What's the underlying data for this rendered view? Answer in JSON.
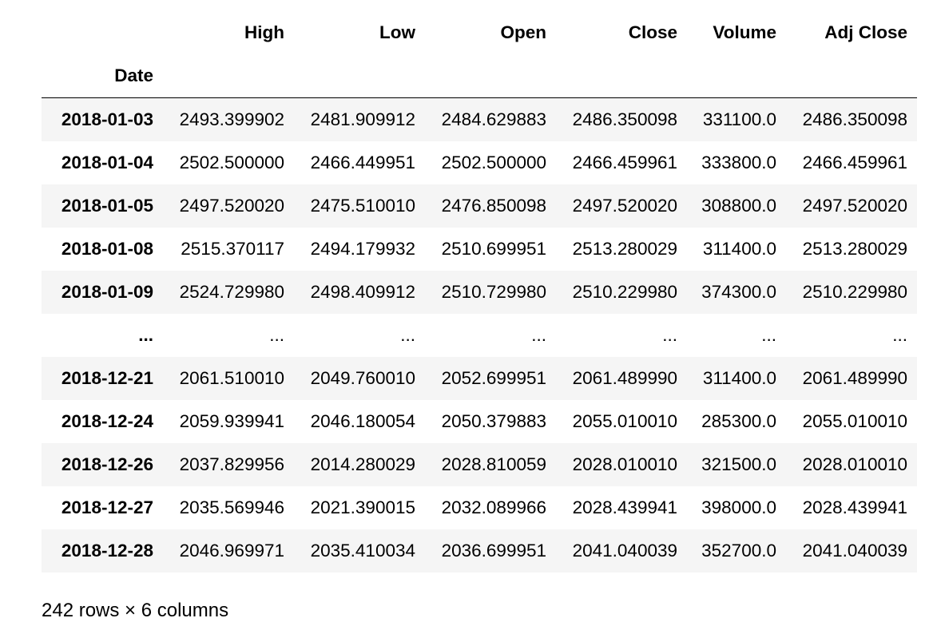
{
  "dataframe": {
    "columns": [
      "High",
      "Low",
      "Open",
      "Close",
      "Volume",
      "Adj Close"
    ],
    "index_name": "Date",
    "rows": [
      {
        "date": "2018-01-03",
        "values": [
          "2493.399902",
          "2481.909912",
          "2484.629883",
          "2486.350098",
          "331100.0",
          "2486.350098"
        ]
      },
      {
        "date": "2018-01-04",
        "values": [
          "2502.500000",
          "2466.449951",
          "2502.500000",
          "2466.459961",
          "333800.0",
          "2466.459961"
        ]
      },
      {
        "date": "2018-01-05",
        "values": [
          "2497.520020",
          "2475.510010",
          "2476.850098",
          "2497.520020",
          "308800.0",
          "2497.520020"
        ]
      },
      {
        "date": "2018-01-08",
        "values": [
          "2515.370117",
          "2494.179932",
          "2510.699951",
          "2513.280029",
          "311400.0",
          "2513.280029"
        ]
      },
      {
        "date": "2018-01-09",
        "values": [
          "2524.729980",
          "2498.409912",
          "2510.729980",
          "2510.229980",
          "374300.0",
          "2510.229980"
        ]
      },
      {
        "date": "...",
        "values": [
          "...",
          "...",
          "...",
          "...",
          "...",
          "..."
        ]
      },
      {
        "date": "2018-12-21",
        "values": [
          "2061.510010",
          "2049.760010",
          "2052.699951",
          "2061.489990",
          "311400.0",
          "2061.489990"
        ]
      },
      {
        "date": "2018-12-24",
        "values": [
          "2059.939941",
          "2046.180054",
          "2050.379883",
          "2055.010010",
          "285300.0",
          "2055.010010"
        ]
      },
      {
        "date": "2018-12-26",
        "values": [
          "2037.829956",
          "2014.280029",
          "2028.810059",
          "2028.010010",
          "321500.0",
          "2028.010010"
        ]
      },
      {
        "date": "2018-12-27",
        "values": [
          "2035.569946",
          "2021.390015",
          "2032.089966",
          "2028.439941",
          "398000.0",
          "2028.439941"
        ]
      },
      {
        "date": "2018-12-28",
        "values": [
          "2046.969971",
          "2035.410034",
          "2036.699951",
          "2041.040039",
          "352700.0",
          "2041.040039"
        ]
      }
    ],
    "shape_text": "242 rows × 6 columns"
  }
}
